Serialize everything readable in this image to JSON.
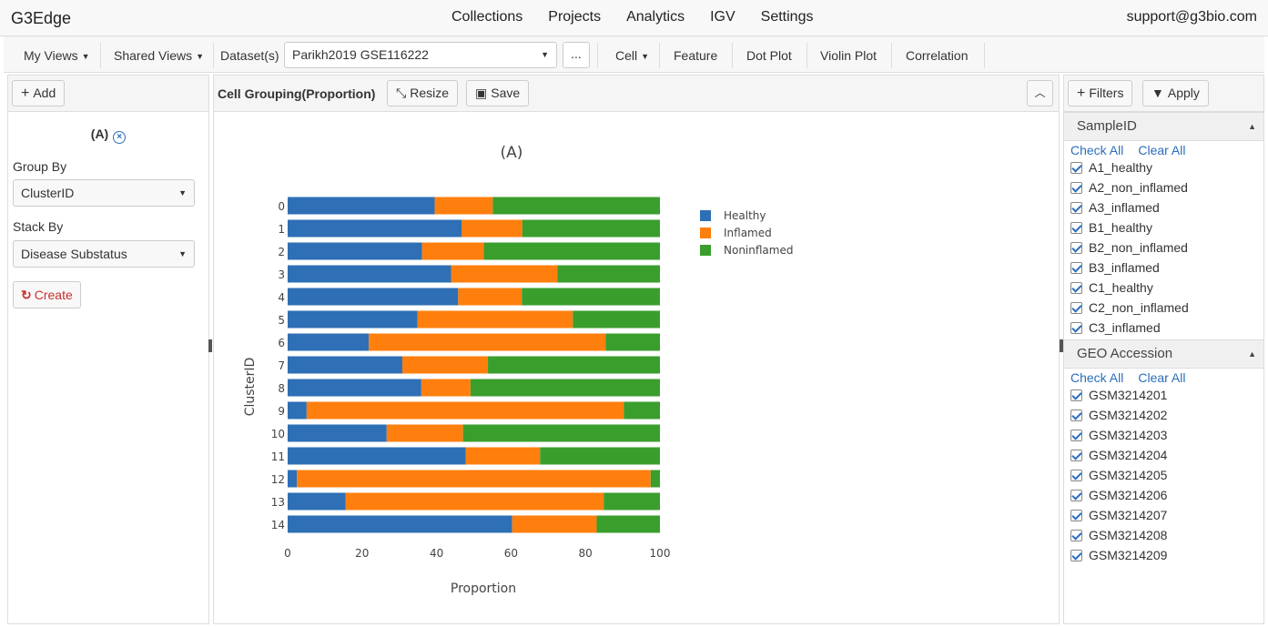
{
  "nav": {
    "brand": "G3Edge",
    "menu": [
      "Collections",
      "Projects",
      "Analytics",
      "IGV",
      "Settings"
    ],
    "support": "support@g3bio.com"
  },
  "toolbar": {
    "my_views": "My Views",
    "shared_views": "Shared Views",
    "datasets_label": "Dataset(s)",
    "dataset_value": "Parikh2019 GSE116222",
    "more": "...",
    "cell": "Cell",
    "feature": "Feature",
    "dot_plot": "Dot Plot",
    "violin_plot": "Violin Plot",
    "correlation": "Correlation"
  },
  "left": {
    "add": "Add",
    "title": "(A)",
    "group_by_label": "Group By",
    "group_by_value": "ClusterID",
    "stack_by_label": "Stack By",
    "stack_by_value": "Disease Substatus",
    "create": "Create"
  },
  "center": {
    "title": "Cell Grouping(Proportion)",
    "resize": "Resize",
    "save": "Save"
  },
  "right": {
    "filters": "Filters",
    "apply": "Apply",
    "sections": [
      {
        "title": "SampleID",
        "check_all": "Check All",
        "clear_all": "Clear All",
        "items": [
          "A1_healthy",
          "A2_non_inflamed",
          "A3_inflamed",
          "B1_healthy",
          "B2_non_inflamed",
          "B3_inflamed",
          "C1_healthy",
          "C2_non_inflamed",
          "C3_inflamed"
        ]
      },
      {
        "title": "GEO Accession",
        "check_all": "Check All",
        "clear_all": "Clear All",
        "items": [
          "GSM3214201",
          "GSM3214202",
          "GSM3214203",
          "GSM3214204",
          "GSM3214205",
          "GSM3214206",
          "GSM3214207",
          "GSM3214208",
          "GSM3214209"
        ]
      }
    ]
  },
  "colors": {
    "healthy": "#2e6fb5",
    "inflamed": "#ff7f0e",
    "noninflamed": "#3a9e2d",
    "link": "#2a6ebb",
    "create": "#c9302c"
  },
  "chart_data": {
    "type": "bar",
    "orientation": "horizontal",
    "stacked": true,
    "title": "(A)",
    "xlabel": "Proportion",
    "ylabel": "ClusterID",
    "xlim": [
      0,
      100
    ],
    "xticks": [
      0,
      20,
      40,
      60,
      80,
      100
    ],
    "categories": [
      "0",
      "1",
      "2",
      "3",
      "4",
      "5",
      "6",
      "7",
      "8",
      "9",
      "10",
      "11",
      "12",
      "13",
      "14"
    ],
    "series": [
      {
        "name": "Healthy",
        "color": "#2e6fb5",
        "values": [
          39.5,
          46.7,
          36.1,
          43.9,
          45.8,
          34.9,
          21.8,
          30.8,
          35.9,
          5.1,
          26.6,
          47.8,
          2.5,
          15.6,
          60.3
        ]
      },
      {
        "name": "Inflamed",
        "color": "#ff7f0e",
        "values": [
          15.6,
          16.3,
          16.6,
          28.6,
          17.1,
          41.7,
          63.6,
          23.0,
          13.2,
          85.2,
          20.5,
          20.0,
          95.0,
          69.3,
          22.7
        ]
      },
      {
        "name": "Noninflamed",
        "color": "#3a9e2d",
        "values": [
          44.9,
          37.0,
          47.3,
          27.5,
          37.1,
          23.4,
          14.6,
          46.2,
          50.9,
          9.7,
          52.9,
          32.2,
          2.5,
          15.1,
          17.0
        ]
      }
    ],
    "legend": "right"
  }
}
